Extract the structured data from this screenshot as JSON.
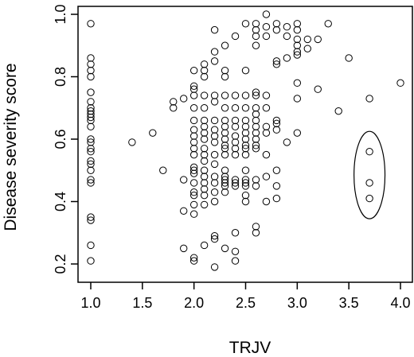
{
  "chart_data": {
    "type": "scatter",
    "title": "",
    "xlabel": "TRJV",
    "ylabel": "Disease severity score",
    "xlim": [
      1.0,
      4.0
    ],
    "ylim": [
      0.2,
      1.0
    ],
    "xticks": [
      "1.0",
      "1.5",
      "2.0",
      "2.5",
      "3.0",
      "3.5",
      "4.0"
    ],
    "yticks": [
      "0.2",
      "0.4",
      "0.6",
      "0.8",
      "1.0"
    ],
    "grid": false,
    "marker": "open-circle",
    "annotation": {
      "shape": "ellipse",
      "center": [
        3.7,
        0.485
      ],
      "rx": 0.15,
      "ry": 0.14
    },
    "points": [
      [
        1.0,
        0.97
      ],
      [
        1.0,
        0.86
      ],
      [
        1.0,
        0.84
      ],
      [
        1.0,
        0.82
      ],
      [
        1.0,
        0.8
      ],
      [
        1.0,
        0.75
      ],
      [
        1.0,
        0.72
      ],
      [
        1.0,
        0.7
      ],
      [
        1.0,
        0.69
      ],
      [
        1.0,
        0.68
      ],
      [
        1.0,
        0.67
      ],
      [
        1.0,
        0.66
      ],
      [
        1.0,
        0.64
      ],
      [
        1.0,
        0.6
      ],
      [
        1.0,
        0.59
      ],
      [
        1.0,
        0.57
      ],
      [
        1.0,
        0.56
      ],
      [
        1.0,
        0.53
      ],
      [
        1.0,
        0.52
      ],
      [
        1.0,
        0.5
      ],
      [
        1.0,
        0.47
      ],
      [
        1.0,
        0.46
      ],
      [
        1.0,
        0.35
      ],
      [
        1.0,
        0.34
      ],
      [
        1.0,
        0.26
      ],
      [
        1.0,
        0.21
      ],
      [
        1.4,
        0.59
      ],
      [
        1.6,
        0.62
      ],
      [
        1.7,
        0.5
      ],
      [
        1.8,
        0.7
      ],
      [
        1.8,
        0.72
      ],
      [
        1.9,
        0.73
      ],
      [
        1.9,
        0.47
      ],
      [
        1.9,
        0.37
      ],
      [
        1.9,
        0.25
      ],
      [
        2.0,
        0.82
      ],
      [
        2.0,
        0.77
      ],
      [
        2.0,
        0.76
      ],
      [
        2.0,
        0.74
      ],
      [
        2.0,
        0.7
      ],
      [
        2.0,
        0.66
      ],
      [
        2.0,
        0.63
      ],
      [
        2.0,
        0.61
      ],
      [
        2.0,
        0.59
      ],
      [
        2.0,
        0.57
      ],
      [
        2.0,
        0.55
      ],
      [
        2.0,
        0.51
      ],
      [
        2.0,
        0.5
      ],
      [
        2.0,
        0.49
      ],
      [
        2.0,
        0.46
      ],
      [
        2.0,
        0.43
      ],
      [
        2.0,
        0.42
      ],
      [
        2.0,
        0.39
      ],
      [
        2.0,
        0.36
      ],
      [
        2.0,
        0.22
      ],
      [
        2.0,
        0.21
      ],
      [
        2.1,
        0.84
      ],
      [
        2.1,
        0.82
      ],
      [
        2.1,
        0.8
      ],
      [
        2.1,
        0.74
      ],
      [
        2.1,
        0.7
      ],
      [
        2.1,
        0.66
      ],
      [
        2.1,
        0.64
      ],
      [
        2.1,
        0.62
      ],
      [
        2.1,
        0.6
      ],
      [
        2.1,
        0.57
      ],
      [
        2.1,
        0.55
      ],
      [
        2.1,
        0.53
      ],
      [
        2.1,
        0.5
      ],
      [
        2.1,
        0.48
      ],
      [
        2.1,
        0.46
      ],
      [
        2.1,
        0.44
      ],
      [
        2.1,
        0.42
      ],
      [
        2.1,
        0.39
      ],
      [
        2.1,
        0.26
      ],
      [
        2.2,
        0.95
      ],
      [
        2.2,
        0.88
      ],
      [
        2.2,
        0.85
      ],
      [
        2.2,
        0.74
      ],
      [
        2.2,
        0.72
      ],
      [
        2.2,
        0.66
      ],
      [
        2.2,
        0.63
      ],
      [
        2.2,
        0.61
      ],
      [
        2.2,
        0.59
      ],
      [
        2.2,
        0.55
      ],
      [
        2.2,
        0.52
      ],
      [
        2.2,
        0.48
      ],
      [
        2.2,
        0.46
      ],
      [
        2.2,
        0.43
      ],
      [
        2.2,
        0.4
      ],
      [
        2.2,
        0.29
      ],
      [
        2.2,
        0.28
      ],
      [
        2.2,
        0.19
      ],
      [
        2.3,
        0.9
      ],
      [
        2.3,
        0.82
      ],
      [
        2.3,
        0.8
      ],
      [
        2.3,
        0.74
      ],
      [
        2.3,
        0.7
      ],
      [
        2.3,
        0.66
      ],
      [
        2.3,
        0.64
      ],
      [
        2.3,
        0.62
      ],
      [
        2.3,
        0.6
      ],
      [
        2.3,
        0.58
      ],
      [
        2.3,
        0.57
      ],
      [
        2.3,
        0.55
      ],
      [
        2.3,
        0.5
      ],
      [
        2.3,
        0.48
      ],
      [
        2.3,
        0.47
      ],
      [
        2.3,
        0.46
      ],
      [
        2.3,
        0.45
      ],
      [
        2.3,
        0.43
      ],
      [
        2.3,
        0.25
      ],
      [
        2.4,
        0.93
      ],
      [
        2.4,
        0.74
      ],
      [
        2.4,
        0.7
      ],
      [
        2.4,
        0.66
      ],
      [
        2.4,
        0.64
      ],
      [
        2.4,
        0.61
      ],
      [
        2.4,
        0.59
      ],
      [
        2.4,
        0.57
      ],
      [
        2.4,
        0.55
      ],
      [
        2.4,
        0.47
      ],
      [
        2.4,
        0.46
      ],
      [
        2.4,
        0.45
      ],
      [
        2.4,
        0.3
      ],
      [
        2.4,
        0.24
      ],
      [
        2.4,
        0.21
      ],
      [
        2.5,
        0.97
      ],
      [
        2.5,
        0.82
      ],
      [
        2.5,
        0.74
      ],
      [
        2.5,
        0.7
      ],
      [
        2.5,
        0.66
      ],
      [
        2.5,
        0.64
      ],
      [
        2.5,
        0.62
      ],
      [
        2.5,
        0.6
      ],
      [
        2.5,
        0.58
      ],
      [
        2.5,
        0.57
      ],
      [
        2.5,
        0.55
      ],
      [
        2.5,
        0.5
      ],
      [
        2.5,
        0.47
      ],
      [
        2.5,
        0.46
      ],
      [
        2.5,
        0.45
      ],
      [
        2.5,
        0.42
      ],
      [
        2.5,
        0.4
      ],
      [
        2.6,
        0.97
      ],
      [
        2.6,
        0.95
      ],
      [
        2.6,
        0.93
      ],
      [
        2.6,
        0.9
      ],
      [
        2.6,
        0.75
      ],
      [
        2.6,
        0.74
      ],
      [
        2.6,
        0.7
      ],
      [
        2.6,
        0.68
      ],
      [
        2.6,
        0.66
      ],
      [
        2.6,
        0.64
      ],
      [
        2.6,
        0.62
      ],
      [
        2.6,
        0.6
      ],
      [
        2.6,
        0.58
      ],
      [
        2.6,
        0.57
      ],
      [
        2.6,
        0.47
      ],
      [
        2.6,
        0.45
      ],
      [
        2.6,
        0.32
      ],
      [
        2.6,
        0.3
      ],
      [
        2.7,
        1.0
      ],
      [
        2.7,
        0.96
      ],
      [
        2.7,
        0.93
      ],
      [
        2.7,
        0.74
      ],
      [
        2.7,
        0.7
      ],
      [
        2.7,
        0.64
      ],
      [
        2.7,
        0.62
      ],
      [
        2.7,
        0.55
      ],
      [
        2.7,
        0.48
      ],
      [
        2.7,
        0.4
      ],
      [
        2.8,
        0.97
      ],
      [
        2.8,
        0.95
      ],
      [
        2.8,
        0.85
      ],
      [
        2.8,
        0.84
      ],
      [
        2.8,
        0.66
      ],
      [
        2.8,
        0.65
      ],
      [
        2.8,
        0.63
      ],
      [
        2.8,
        0.5
      ],
      [
        2.8,
        0.45
      ],
      [
        2.8,
        0.41
      ],
      [
        2.9,
        0.96
      ],
      [
        2.9,
        0.93
      ],
      [
        2.9,
        0.86
      ],
      [
        2.9,
        0.59
      ],
      [
        3.0,
        0.97
      ],
      [
        3.0,
        0.95
      ],
      [
        3.0,
        0.92
      ],
      [
        3.0,
        0.9
      ],
      [
        3.0,
        0.88
      ],
      [
        3.0,
        0.87
      ],
      [
        3.0,
        0.78
      ],
      [
        3.0,
        0.73
      ],
      [
        3.0,
        0.62
      ],
      [
        3.1,
        0.92
      ],
      [
        3.1,
        0.89
      ],
      [
        3.2,
        0.92
      ],
      [
        3.2,
        0.76
      ],
      [
        3.3,
        0.97
      ],
      [
        3.4,
        0.69
      ],
      [
        3.5,
        0.86
      ],
      [
        3.7,
        0.73
      ],
      [
        3.7,
        0.56
      ],
      [
        3.7,
        0.46
      ],
      [
        3.7,
        0.41
      ],
      [
        4.0,
        0.78
      ]
    ]
  }
}
